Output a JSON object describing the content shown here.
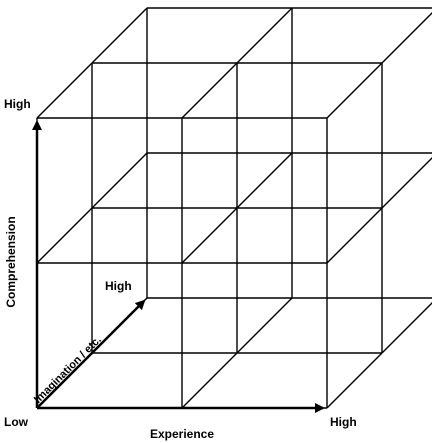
{
  "labels": {
    "y_high": "High",
    "y_axis": "Comprehension",
    "origin": "Low",
    "x_axis": "Experience",
    "x_high": "High",
    "z_high": "High",
    "z_axis": "Imagination / etc."
  }
}
